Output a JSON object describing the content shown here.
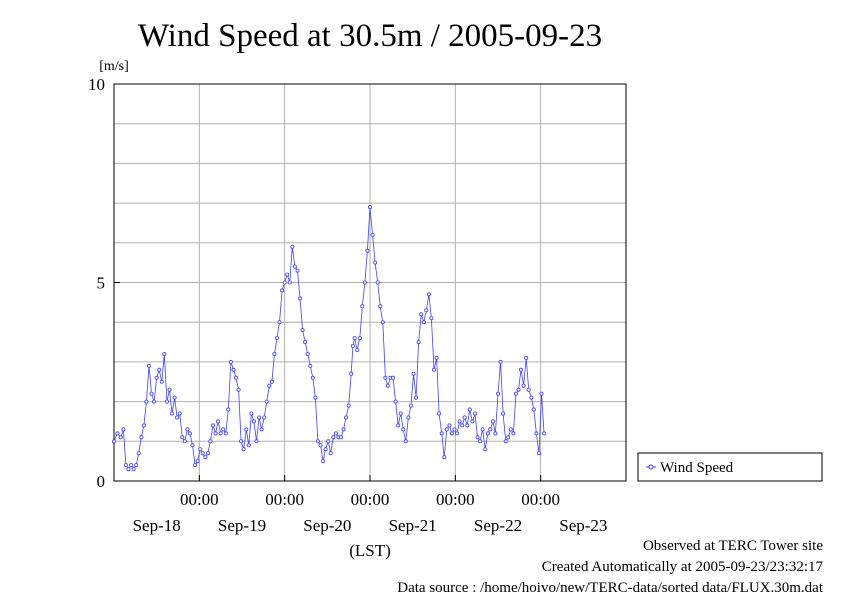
{
  "chart_data": {
    "type": "line",
    "title": "Wind Speed at 30.5m / 2005-09-23",
    "ylabel": "[m/s]",
    "xlabel": "(LST)",
    "ylim": [
      0,
      10
    ],
    "y_ticks": [
      "0",
      "5",
      "10"
    ],
    "xlim": [
      0,
      6
    ],
    "x_ticks": [
      {
        "x": 1.0,
        "time": "00:00"
      },
      {
        "x": 2.0,
        "time": "00:00"
      },
      {
        "x": 3.0,
        "time": "00:00"
      },
      {
        "x": 4.0,
        "time": "00:00"
      },
      {
        "x": 5.0,
        "time": "00:00"
      }
    ],
    "x_day_labels": [
      {
        "x": 0.5,
        "label": "Sep-18"
      },
      {
        "x": 1.5,
        "label": "Sep-19"
      },
      {
        "x": 2.5,
        "label": "Sep-20"
      },
      {
        "x": 3.5,
        "label": "Sep-21"
      },
      {
        "x": 4.5,
        "label": "Sep-22"
      },
      {
        "x": 5.5,
        "label": "Sep-23"
      }
    ],
    "grid": true,
    "legend_position": "bottom-right-outside",
    "series": [
      {
        "name": "Wind Speed",
        "color": "#4040ff",
        "points": [
          [
            0.0,
            1.0
          ],
          [
            0.04,
            1.2
          ],
          [
            0.08,
            1.1
          ],
          [
            0.11,
            1.3
          ],
          [
            0.14,
            0.4
          ],
          [
            0.17,
            0.3
          ],
          [
            0.2,
            0.4
          ],
          [
            0.23,
            0.3
          ],
          [
            0.26,
            0.4
          ],
          [
            0.29,
            0.7
          ],
          [
            0.32,
            1.1
          ],
          [
            0.35,
            1.4
          ],
          [
            0.38,
            2.0
          ],
          [
            0.41,
            2.9
          ],
          [
            0.44,
            2.2
          ],
          [
            0.47,
            2.0
          ],
          [
            0.5,
            2.6
          ],
          [
            0.53,
            2.8
          ],
          [
            0.56,
            2.5
          ],
          [
            0.59,
            3.2
          ],
          [
            0.62,
            2.0
          ],
          [
            0.65,
            2.3
          ],
          [
            0.68,
            1.7
          ],
          [
            0.71,
            2.1
          ],
          [
            0.74,
            1.6
          ],
          [
            0.77,
            1.7
          ],
          [
            0.8,
            1.1
          ],
          [
            0.83,
            1.0
          ],
          [
            0.86,
            1.3
          ],
          [
            0.89,
            1.2
          ],
          [
            0.92,
            0.9
          ],
          [
            0.95,
            0.4
          ],
          [
            0.98,
            0.5
          ],
          [
            1.01,
            0.8
          ],
          [
            1.04,
            0.7
          ],
          [
            1.07,
            0.6
          ],
          [
            1.1,
            0.7
          ],
          [
            1.13,
            1.0
          ],
          [
            1.16,
            1.4
          ],
          [
            1.19,
            1.2
          ],
          [
            1.22,
            1.5
          ],
          [
            1.25,
            1.2
          ],
          [
            1.28,
            1.3
          ],
          [
            1.31,
            1.2
          ],
          [
            1.34,
            1.8
          ],
          [
            1.37,
            3.0
          ],
          [
            1.4,
            2.8
          ],
          [
            1.43,
            2.6
          ],
          [
            1.46,
            2.3
          ],
          [
            1.49,
            1.0
          ],
          [
            1.52,
            0.8
          ],
          [
            1.55,
            1.3
          ],
          [
            1.58,
            0.9
          ],
          [
            1.61,
            1.7
          ],
          [
            1.64,
            1.5
          ],
          [
            1.67,
            1.0
          ],
          [
            1.7,
            1.6
          ],
          [
            1.73,
            1.3
          ],
          [
            1.76,
            1.6
          ],
          [
            1.79,
            2.0
          ],
          [
            1.82,
            2.4
          ],
          [
            1.85,
            2.5
          ],
          [
            1.88,
            3.2
          ],
          [
            1.91,
            3.6
          ],
          [
            1.94,
            4.0
          ],
          [
            1.97,
            4.8
          ],
          [
            2.0,
            5.0
          ],
          [
            2.03,
            5.2
          ],
          [
            2.06,
            5.0
          ],
          [
            2.09,
            5.9
          ],
          [
            2.12,
            5.4
          ],
          [
            2.15,
            5.3
          ],
          [
            2.18,
            4.6
          ],
          [
            2.21,
            3.8
          ],
          [
            2.24,
            3.5
          ],
          [
            2.27,
            3.2
          ],
          [
            2.3,
            2.9
          ],
          [
            2.33,
            2.6
          ],
          [
            2.36,
            2.1
          ],
          [
            2.39,
            1.0
          ],
          [
            2.42,
            0.9
          ],
          [
            2.45,
            0.5
          ],
          [
            2.48,
            0.8
          ],
          [
            2.51,
            1.0
          ],
          [
            2.54,
            0.7
          ],
          [
            2.57,
            1.1
          ],
          [
            2.6,
            1.2
          ],
          [
            2.63,
            1.1
          ],
          [
            2.66,
            1.1
          ],
          [
            2.69,
            1.3
          ],
          [
            2.72,
            1.6
          ],
          [
            2.75,
            1.9
          ],
          [
            2.78,
            2.7
          ],
          [
            2.8,
            3.4
          ],
          [
            2.82,
            3.6
          ],
          [
            2.85,
            3.3
          ],
          [
            2.88,
            3.6
          ],
          [
            2.91,
            4.4
          ],
          [
            2.94,
            5.0
          ],
          [
            2.97,
            5.8
          ],
          [
            3.0,
            6.9
          ],
          [
            3.03,
            6.2
          ],
          [
            3.06,
            5.5
          ],
          [
            3.09,
            5.0
          ],
          [
            3.12,
            4.4
          ],
          [
            3.15,
            4.0
          ],
          [
            3.18,
            2.6
          ],
          [
            3.21,
            2.4
          ],
          [
            3.24,
            2.6
          ],
          [
            3.27,
            2.6
          ],
          [
            3.3,
            2.0
          ],
          [
            3.33,
            1.4
          ],
          [
            3.36,
            1.7
          ],
          [
            3.39,
            1.3
          ],
          [
            3.42,
            1.0
          ],
          [
            3.45,
            1.6
          ],
          [
            3.48,
            1.9
          ],
          [
            3.51,
            2.7
          ],
          [
            3.54,
            2.1
          ],
          [
            3.57,
            3.5
          ],
          [
            3.6,
            4.2
          ],
          [
            3.63,
            4.0
          ],
          [
            3.66,
            4.3
          ],
          [
            3.69,
            4.7
          ],
          [
            3.72,
            4.1
          ],
          [
            3.75,
            2.8
          ],
          [
            3.78,
            3.1
          ],
          [
            3.81,
            1.7
          ],
          [
            3.84,
            1.2
          ],
          [
            3.87,
            0.6
          ],
          [
            3.9,
            1.3
          ],
          [
            3.93,
            1.4
          ],
          [
            3.96,
            1.2
          ],
          [
            3.99,
            1.3
          ],
          [
            4.02,
            1.2
          ],
          [
            4.05,
            1.5
          ],
          [
            4.08,
            1.4
          ],
          [
            4.11,
            1.6
          ],
          [
            4.14,
            1.4
          ],
          [
            4.17,
            1.8
          ],
          [
            4.2,
            1.5
          ],
          [
            4.23,
            1.7
          ],
          [
            4.26,
            1.1
          ],
          [
            4.29,
            1.0
          ],
          [
            4.32,
            1.3
          ],
          [
            4.35,
            0.8
          ],
          [
            4.38,
            1.2
          ],
          [
            4.41,
            1.3
          ],
          [
            4.44,
            1.5
          ],
          [
            4.47,
            1.2
          ],
          [
            4.5,
            2.2
          ],
          [
            4.53,
            3.0
          ],
          [
            4.56,
            1.7
          ],
          [
            4.59,
            1.0
          ],
          [
            4.62,
            1.1
          ],
          [
            4.65,
            1.3
          ],
          [
            4.68,
            1.2
          ],
          [
            4.71,
            2.2
          ],
          [
            4.74,
            2.3
          ],
          [
            4.77,
            2.8
          ],
          [
            4.8,
            2.4
          ],
          [
            4.83,
            3.1
          ],
          [
            4.86,
            2.3
          ],
          [
            4.89,
            2.1
          ],
          [
            4.92,
            1.8
          ],
          [
            4.95,
            1.2
          ],
          [
            4.98,
            0.7
          ],
          [
            5.01,
            2.2
          ],
          [
            5.04,
            1.2
          ]
        ]
      }
    ]
  },
  "footer": {
    "line1": "Observed at TERC Tower site",
    "line2": "Created Automatically at 2005-09-23/23:32:17",
    "line3": "Data source : /home/hoivo/new/TERC-data/sorted  data/FLUX.30m.dat"
  }
}
